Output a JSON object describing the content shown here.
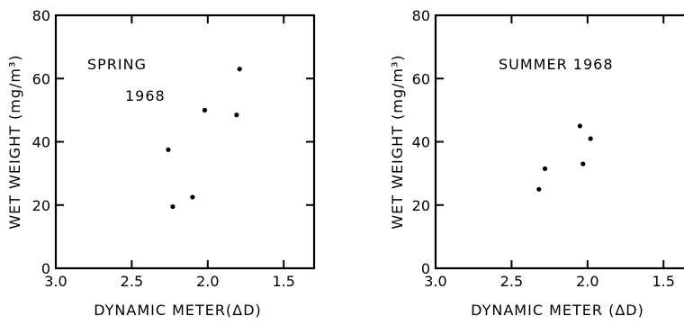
{
  "chart_data": [
    {
      "type": "scatter",
      "title_lines": [
        "SPRING",
        "1968"
      ],
      "xlabel": "DYNAMIC METER(ΔD)",
      "ylabel": "WET WEIGHT (mg/m³)",
      "xlim": [
        3.0,
        1.3
      ],
      "ylim": [
        0,
        80
      ],
      "x_reversed": true,
      "x_ticks": [
        3.0,
        2.5,
        2.0,
        1.5
      ],
      "x_tick_labels": [
        "3.0",
        "2.5",
        "2.0",
        "1.5"
      ],
      "y_ticks": [
        0,
        20,
        40,
        60,
        80
      ],
      "y_tick_labels": [
        "0",
        "20",
        "40",
        "60",
        "80"
      ],
      "points": [
        {
          "x": 2.26,
          "y": 37.5
        },
        {
          "x": 2.23,
          "y": 19.5
        },
        {
          "x": 2.1,
          "y": 22.5
        },
        {
          "x": 2.02,
          "y": 50
        },
        {
          "x": 1.81,
          "y": 48.5
        },
        {
          "x": 1.79,
          "y": 63
        }
      ]
    },
    {
      "type": "scatter",
      "title_lines": [
        "SUMMER  1968"
      ],
      "xlabel": "DYNAMIC  METER (ΔD)",
      "ylabel": "WET WEIGHT (mg/m³)",
      "xlim": [
        3.0,
        1.3
      ],
      "ylim": [
        0,
        80
      ],
      "x_reversed": true,
      "x_ticks": [
        3.0,
        2.5,
        2.0,
        1.5
      ],
      "x_tick_labels": [
        "3.0",
        "2.5",
        "2.0",
        "1.5"
      ],
      "y_ticks": [
        0,
        20,
        40,
        60,
        80
      ],
      "y_tick_labels": [
        "0",
        "20",
        "40",
        "60",
        "80"
      ],
      "points": [
        {
          "x": 2.32,
          "y": 25
        },
        {
          "x": 2.28,
          "y": 31.5
        },
        {
          "x": 2.05,
          "y": 45
        },
        {
          "x": 2.03,
          "y": 33
        },
        {
          "x": 1.98,
          "y": 41
        }
      ]
    }
  ]
}
